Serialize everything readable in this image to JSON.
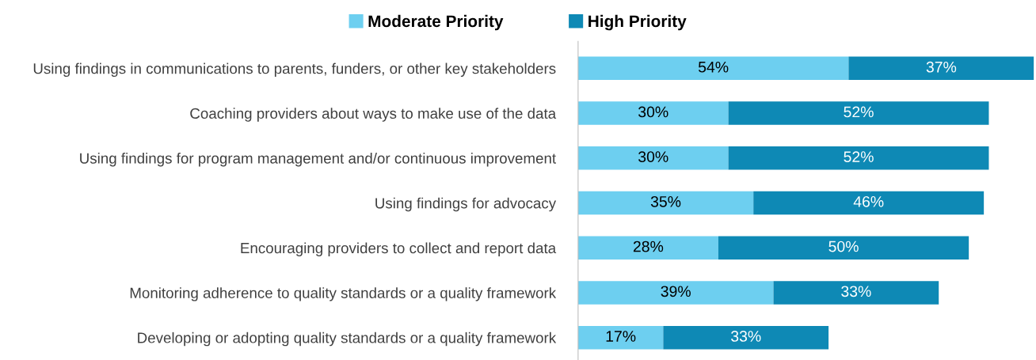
{
  "chart_data": {
    "type": "bar",
    "orientation": "horizontal",
    "stacked": true,
    "legend": "top",
    "grid": false,
    "tick_labels": "y",
    "categories": [
      "Using findings in communications to parents, funders, or other key stakeholders",
      "Coaching providers about ways to make use of the data",
      "Using findings for program management and/or continuous improvement",
      "Using findings for advocacy",
      "Encouraging providers to collect and report data",
      "Monitoring adherence to quality standards or a quality framework",
      "Developing or adopting quality standards or a quality framework"
    ],
    "series": [
      {
        "name": "Moderate Priority",
        "color": "#6dcff0",
        "values": [
          54,
          30,
          30,
          35,
          28,
          39,
          17
        ],
        "value_labels": [
          "54%",
          "30%",
          "30%",
          "35%",
          "28%",
          "39%",
          "17%"
        ]
      },
      {
        "name": "High Priority",
        "color": "#0e89b5",
        "values": [
          37,
          52,
          52,
          46,
          50,
          33,
          33
        ],
        "value_labels": [
          "37%",
          "52%",
          "52%",
          "46%",
          "50%",
          "33%",
          "33%"
        ]
      }
    ]
  }
}
